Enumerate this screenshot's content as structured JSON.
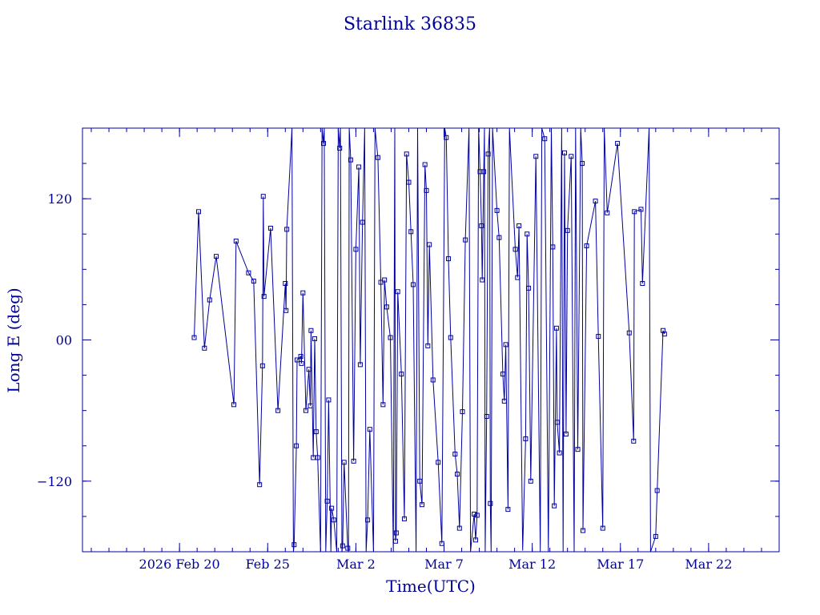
{
  "chart_data": {
    "type": "line",
    "title": "Starlink 36835",
    "xlabel": "Time(UTC)",
    "ylabel": "Long E (deg)",
    "x_unit": "days",
    "xlim": [
      "2026-02-14T12:00",
      "2026-03-26T00:00"
    ],
    "ylim": [
      -180,
      180
    ],
    "x_ticks": [
      {
        "date": "2026-02-20",
        "label": "2026 Feb 20"
      },
      {
        "date": "2026-02-25",
        "label": "Feb 25"
      },
      {
        "date": "2026-03-02",
        "label": "Mar  2"
      },
      {
        "date": "2026-03-07",
        "label": "Mar  7"
      },
      {
        "date": "2026-03-12",
        "label": "Mar 12"
      },
      {
        "date": "2026-03-17",
        "label": "Mar 17"
      },
      {
        "date": "2026-03-22",
        "label": "Mar 22"
      }
    ],
    "y_ticks": [
      {
        "value": 120,
        "label": "120"
      },
      {
        "value": 0,
        "label": "00"
      },
      {
        "value": -120,
        "label": "−120"
      }
    ],
    "color": "#00009c",
    "marker": "square",
    "wrap_longitude": true,
    "series": [
      {
        "points": [
          [
            "2026-02-20T20:00",
            2
          ],
          [
            "2026-02-21T02:00",
            109
          ],
          [
            "2026-02-21T10:00",
            -7
          ],
          [
            "2026-02-21T17:00",
            34
          ],
          [
            "2026-02-22T02:00",
            71
          ],
          [
            "2026-02-23T02:00",
            -55
          ],
          [
            "2026-02-23T05:00",
            84
          ],
          [
            "2026-02-23T22:00",
            57
          ],
          [
            "2026-02-24T05:00",
            50
          ],
          [
            "2026-02-24T13:00",
            -123
          ],
          [
            "2026-02-24T17:00",
            -22
          ],
          [
            "2026-02-24T18:00",
            122
          ],
          [
            "2026-02-24T19:00",
            37
          ],
          [
            "2026-02-25T04:00",
            95
          ],
          [
            "2026-02-25T14:00",
            -60
          ],
          [
            "2026-02-26T00:00",
            48
          ],
          [
            "2026-02-26T01:00",
            25
          ],
          [
            "2026-02-26T02:00",
            94
          ],
          [
            "2026-02-26T09:00",
            180
          ],
          [
            "2026-02-26T11:00",
            -180
          ],
          [
            "2026-02-26T12:00",
            -174
          ],
          [
            "2026-02-26T15:00",
            -90
          ],
          [
            "2026-02-26T16:00",
            -17
          ],
          [
            "2026-02-26T21:00",
            -14
          ],
          [
            "2026-02-26T22:00",
            -20
          ],
          [
            "2026-02-27T00:00",
            40
          ],
          [
            "2026-02-27T04:00",
            -60
          ],
          [
            "2026-02-27T08:00",
            -25
          ],
          [
            "2026-02-27T10:00",
            -56
          ],
          [
            "2026-02-27T11:00",
            8
          ],
          [
            "2026-02-27T14:00",
            -100
          ],
          [
            "2026-02-27T16:00",
            1
          ],
          [
            "2026-02-27T18:00",
            -78
          ],
          [
            "2026-02-27T20:00",
            -100
          ],
          [
            "2026-02-28T00:00",
            -180
          ],
          [
            "2026-02-28T02:00",
            180
          ],
          [
            "2026-02-28T04:00",
            167
          ],
          [
            "2026-02-28T05:00",
            180
          ],
          [
            "2026-02-28T07:00",
            -180
          ],
          [
            "2026-02-28T09:00",
            -137
          ],
          [
            "2026-02-28T11:00",
            -51
          ],
          [
            "2026-02-28T14:00",
            -180
          ],
          [
            "2026-02-28T15:00",
            -143
          ],
          [
            "2026-02-28T18:00",
            -153
          ],
          [
            "2026-02-28T22:00",
            -180
          ],
          [
            "2026-03-01T00:00",
            180
          ],
          [
            "2026-03-01T02:00",
            163
          ],
          [
            "2026-03-01T03:00",
            180
          ],
          [
            "2026-03-01T05:00",
            -180
          ],
          [
            "2026-03-01T06:00",
            -175
          ],
          [
            "2026-03-01T08:00",
            -104
          ],
          [
            "2026-03-01T13:00",
            -177
          ],
          [
            "2026-03-01T14:00",
            -180
          ],
          [
            "2026-03-01T15:00",
            180
          ],
          [
            "2026-03-01T17:00",
            153
          ],
          [
            "2026-03-01T21:00",
            -103
          ],
          [
            "2026-03-02T00:00",
            77
          ],
          [
            "2026-03-02T04:00",
            147
          ],
          [
            "2026-03-02T06:00",
            -21
          ],
          [
            "2026-03-02T09:00",
            100
          ],
          [
            "2026-03-02T12:00",
            180
          ],
          [
            "2026-03-02T14:00",
            -180
          ],
          [
            "2026-03-02T16:00",
            -153
          ],
          [
            "2026-03-02T19:00",
            -76
          ],
          [
            "2026-03-03T00:00",
            -180
          ],
          [
            "2026-03-03T02:00",
            180
          ],
          [
            "2026-03-03T06:00",
            155
          ],
          [
            "2026-03-03T10:00",
            49
          ],
          [
            "2026-03-03T13:00",
            -55
          ],
          [
            "2026-03-03T15:00",
            51
          ],
          [
            "2026-03-03T18:00",
            28
          ],
          [
            "2026-03-03T23:00",
            2
          ],
          [
            "2026-03-04T03:00",
            -180
          ],
          [
            "2026-03-04T05:00",
            180
          ],
          [
            "2026-03-04T06:00",
            -171
          ],
          [
            "2026-03-04T07:00",
            -164
          ],
          [
            "2026-03-04T09:00",
            41
          ],
          [
            "2026-03-04T14:00",
            -29
          ],
          [
            "2026-03-04T18:00",
            -152
          ],
          [
            "2026-03-04T21:00",
            158
          ],
          [
            "2026-03-05T00:00",
            134
          ],
          [
            "2026-03-05T03:00",
            92
          ],
          [
            "2026-03-05T06:00",
            47
          ],
          [
            "2026-03-05T10:00",
            -180
          ],
          [
            "2026-03-05T12:00",
            180
          ],
          [
            "2026-03-05T15:00",
            -120
          ],
          [
            "2026-03-05T18:00",
            -140
          ],
          [
            "2026-03-05T22:00",
            149
          ],
          [
            "2026-03-06T00:00",
            127
          ],
          [
            "2026-03-06T02:00",
            -5
          ],
          [
            "2026-03-06T04:00",
            81
          ],
          [
            "2026-03-06T09:00",
            -34
          ],
          [
            "2026-03-06T16:00",
            -104
          ],
          [
            "2026-03-06T21:00",
            -173
          ],
          [
            "2026-03-07T01:00",
            180
          ],
          [
            "2026-03-07T03:00",
            172
          ],
          [
            "2026-03-07T06:00",
            69
          ],
          [
            "2026-03-07T09:00",
            2
          ],
          [
            "2026-03-07T15:00",
            -97
          ],
          [
            "2026-03-07T18:00",
            -114
          ],
          [
            "2026-03-07T21:00",
            -160
          ],
          [
            "2026-03-08T01:00",
            -61
          ],
          [
            "2026-03-08T05:00",
            85
          ],
          [
            "2026-03-08T10:00",
            180
          ],
          [
            "2026-03-08T12:00",
            -180
          ],
          [
            "2026-03-08T17:00",
            -148
          ],
          [
            "2026-03-08T19:00",
            -170
          ],
          [
            "2026-03-08T21:00",
            -149
          ],
          [
            "2026-03-08T23:00",
            180
          ],
          [
            "2026-03-09T01:00",
            143
          ],
          [
            "2026-03-09T03:00",
            97
          ],
          [
            "2026-03-09T04:00",
            51
          ],
          [
            "2026-03-09T06:00",
            143
          ],
          [
            "2026-03-09T07:00",
            180
          ],
          [
            "2026-03-09T08:00",
            -180
          ],
          [
            "2026-03-09T10:00",
            -65
          ],
          [
            "2026-03-09T12:00",
            158
          ],
          [
            "2026-03-09T14:00",
            180
          ],
          [
            "2026-03-09T15:00",
            -139
          ],
          [
            "2026-03-09T16:00",
            -180
          ],
          [
            "2026-03-09T18:00",
            180
          ],
          [
            "2026-03-10T00:00",
            110
          ],
          [
            "2026-03-10T03:00",
            87
          ],
          [
            "2026-03-10T08:00",
            -29
          ],
          [
            "2026-03-10T10:00",
            -52
          ],
          [
            "2026-03-10T12:00",
            -4
          ],
          [
            "2026-03-10T15:00",
            -144
          ],
          [
            "2026-03-10T17:00",
            180
          ],
          [
            "2026-03-11T01:00",
            77
          ],
          [
            "2026-03-11T04:00",
            53
          ],
          [
            "2026-03-11T06:00",
            97
          ],
          [
            "2026-03-11T11:00",
            -179
          ],
          [
            "2026-03-11T15:00",
            -84
          ],
          [
            "2026-03-11T17:00",
            90
          ],
          [
            "2026-03-11T19:00",
            44
          ],
          [
            "2026-03-11T22:00",
            -120
          ],
          [
            "2026-03-12T05:00",
            156
          ],
          [
            "2026-03-12T11:00",
            -180
          ],
          [
            "2026-03-12T13:00",
            180
          ],
          [
            "2026-03-12T17:00",
            171
          ],
          [
            "2026-03-12T22:00",
            -180
          ],
          [
            "2026-03-13T02:00",
            180
          ],
          [
            "2026-03-13T04:00",
            79
          ],
          [
            "2026-03-13T06:00",
            -141
          ],
          [
            "2026-03-13T09:00",
            10
          ],
          [
            "2026-03-13T10:00",
            -70
          ],
          [
            "2026-03-13T13:00",
            -96
          ],
          [
            "2026-03-13T16:00",
            180
          ],
          [
            "2026-03-13T18:00",
            -180
          ],
          [
            "2026-03-13T20:00",
            159
          ],
          [
            "2026-03-13T22:00",
            -80
          ],
          [
            "2026-03-14T00:00",
            93
          ],
          [
            "2026-03-14T05:00",
            156
          ],
          [
            "2026-03-14T09:00",
            -180
          ],
          [
            "2026-03-14T11:00",
            180
          ],
          [
            "2026-03-14T14:00",
            -93
          ],
          [
            "2026-03-14T18:00",
            180
          ],
          [
            "2026-03-14T20:00",
            150
          ],
          [
            "2026-03-14T21:00",
            -162
          ],
          [
            "2026-03-15T02:00",
            80
          ],
          [
            "2026-03-15T14:00",
            118
          ],
          [
            "2026-03-15T18:00",
            3
          ],
          [
            "2026-03-16T00:00",
            -160
          ],
          [
            "2026-03-16T02:00",
            180
          ],
          [
            "2026-03-16T06:00",
            108
          ],
          [
            "2026-03-16T20:00",
            167
          ],
          [
            "2026-03-17T12:00",
            6
          ],
          [
            "2026-03-17T18:00",
            -86
          ],
          [
            "2026-03-17T19:00",
            109
          ],
          [
            "2026-03-18T04:00",
            111
          ],
          [
            "2026-03-18T06:00",
            48
          ],
          [
            "2026-03-18T15:00",
            180
          ],
          [
            "2026-03-18T17:00",
            -180
          ],
          [
            "2026-03-19T00:00",
            -167
          ],
          [
            "2026-03-19T02:00",
            -128
          ],
          [
            "2026-03-19T10:00",
            8
          ],
          [
            "2026-03-19T12:00",
            5
          ]
        ]
      }
    ]
  }
}
